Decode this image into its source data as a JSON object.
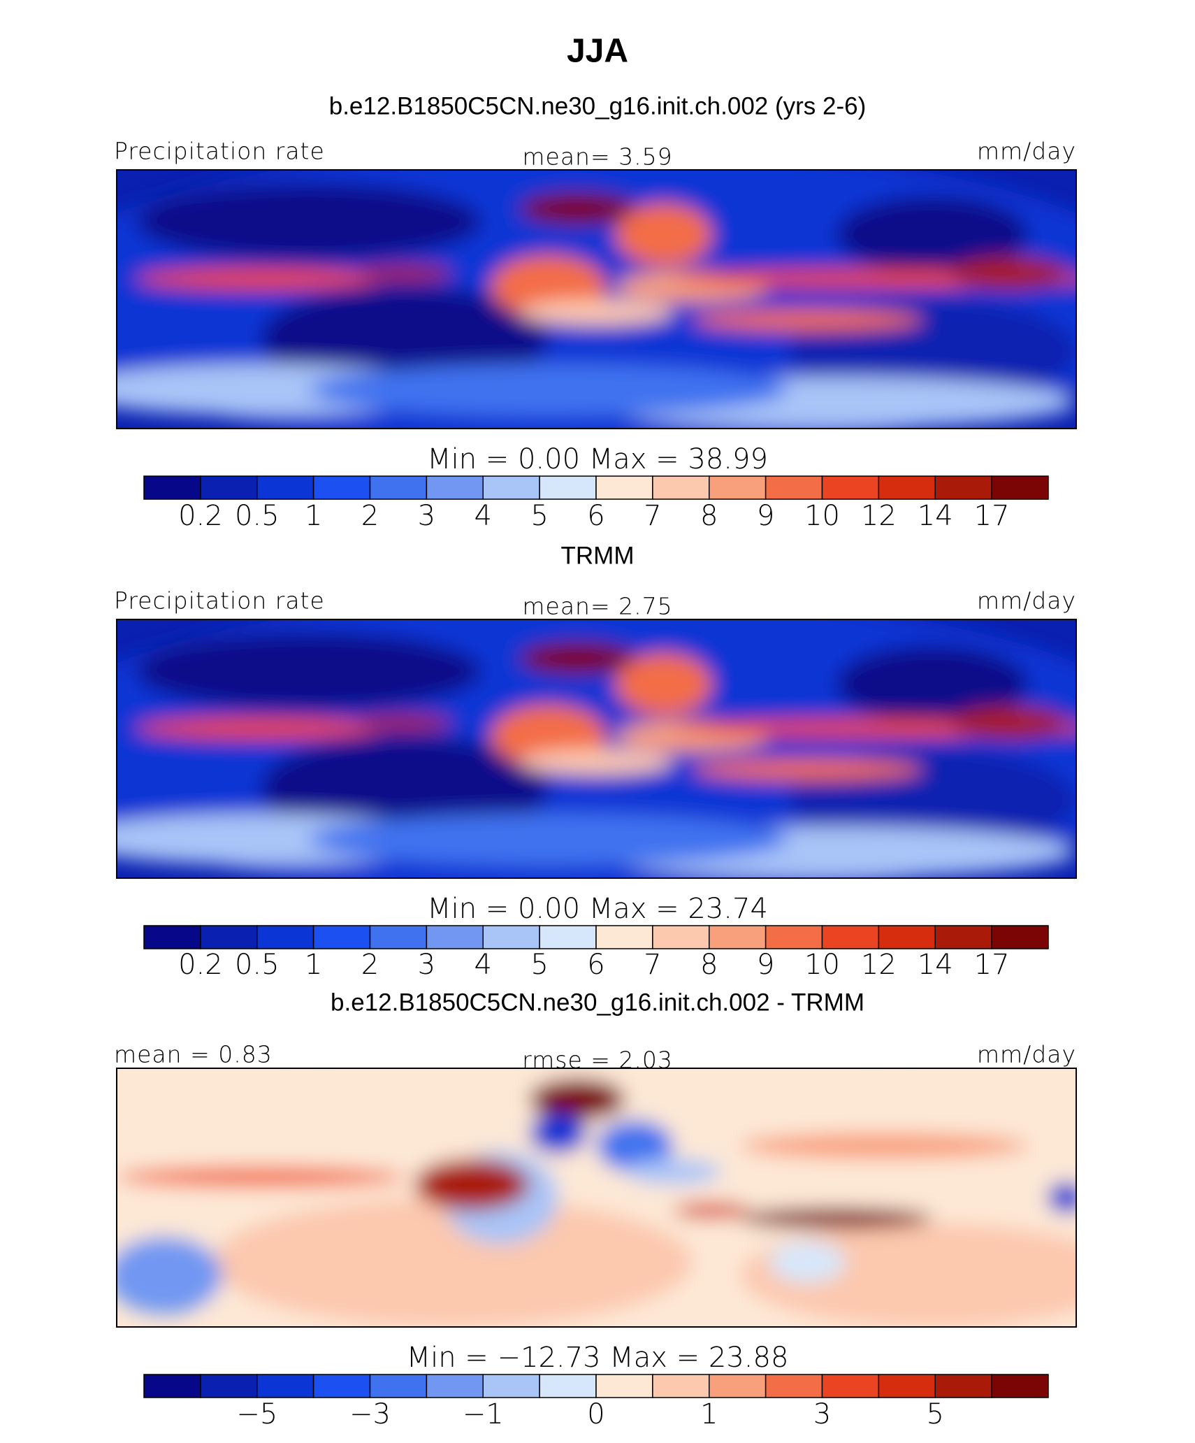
{
  "title": "JJA",
  "colorbar_colors": [
    "#07078a",
    "#0a20b0",
    "#0b35d4",
    "#1c50f0",
    "#4072ef",
    "#7197f2",
    "#a9c4f7",
    "#d7e7fb",
    "#fde8d6",
    "#fcc8ae",
    "#f89f7c",
    "#f36d47",
    "#eb4423",
    "#d52d0e",
    "#a91a09",
    "#7b0404"
  ],
  "panels": [
    {
      "title": "b.e12.B1850C5CN.ne30_g16.init.ch.002 (yrs 2-6)",
      "left_label": "Precipitation rate",
      "center_label": "mean=    3.59",
      "right_label": "mm/day",
      "minmax": "Min  =    0.00  Max  =   38.99",
      "colorbar_labels": [
        "0.2",
        "0.5",
        "1",
        "2",
        "3",
        "4",
        "5",
        "6",
        "7",
        "8",
        "9",
        "10",
        "12",
        "14",
        "17"
      ]
    },
    {
      "title": "TRMM",
      "left_label": "Precipitation rate",
      "center_label": "mean=    2.75",
      "right_label": "mm/day",
      "minmax": "Min  =    0.00  Max  =   23.74",
      "colorbar_labels": [
        "0.2",
        "0.5",
        "1",
        "2",
        "3",
        "4",
        "5",
        "6",
        "7",
        "8",
        "9",
        "10",
        "12",
        "14",
        "17"
      ]
    },
    {
      "title": "b.e12.B1850C5CN.ne30_g16.init.ch.002 - TRMM",
      "left_label": "mean =    0.83",
      "center_label": "rmse =    2.03",
      "right_label": "mm/day",
      "minmax": "Min  = −12.73  Max  =   23.88",
      "colorbar_labels": [
        null,
        "−5",
        null,
        "−3",
        null,
        "−1",
        null,
        "0",
        null,
        "1",
        null,
        "3",
        null,
        "5",
        null
      ]
    }
  ]
}
